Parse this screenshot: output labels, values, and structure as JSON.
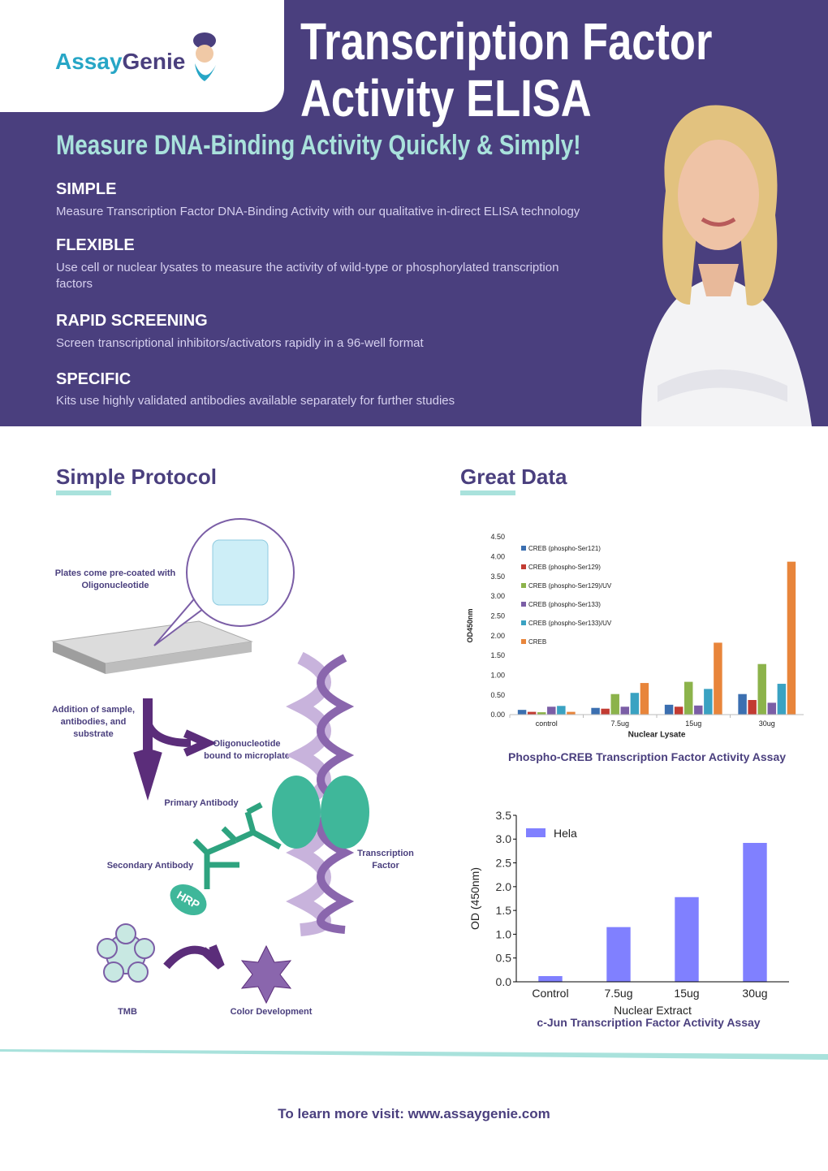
{
  "logo": {
    "part_a": "Assay",
    "part_b": "Genie"
  },
  "header": {
    "title_line1": "Transcription Factor",
    "title_line2": "Activity ELISA",
    "subtitle": "Measure DNA-Binding Activity Quickly & Simply!"
  },
  "features": [
    {
      "heading": "SIMPLE",
      "text": "Measure Transcription Factor DNA-Binding Activity with our qualitative in-direct ELISA technology"
    },
    {
      "heading": "FLEXIBLE",
      "text": "Use cell or nuclear lysates to measure the activity of wild-type or phosphorylated transcription factors"
    },
    {
      "heading": "RAPID SCREENING",
      "text": "Screen transcriptional inhibitors/activators rapidly in a 96-well format"
    },
    {
      "heading": "SPECIFIC",
      "text": "Kits use highly validated antibodies available separately for further studies"
    }
  ],
  "protocol": {
    "heading": "Simple Protocol",
    "labels": {
      "plates": [
        "Plates come pre-coated with",
        "Oligonucleotide"
      ],
      "addition": [
        "Addition of sample,",
        "antibodies, and",
        "substrate"
      ],
      "oligo": [
        "Oligonucleotide",
        "bound to microplate"
      ],
      "primary": "Primary Antibody",
      "secondary": "Secondary Antibody",
      "tf": [
        "Transcription",
        "Factor"
      ],
      "hrp": "HRP",
      "tmb": "TMB",
      "color": "Color Development"
    }
  },
  "data_heading": "Great Data",
  "chart_data": [
    {
      "type": "bar",
      "title": "Phospho-CREB Transcription Factor Activity Assay",
      "x_label": "Nuclear Lysate",
      "y_label": "OD450nm",
      "categories": [
        "control",
        "7.5ug",
        "15ug",
        "30ug"
      ],
      "series": [
        {
          "name": "CREB (phospho-Ser121)",
          "color": "#3b6fb0",
          "values": [
            0.12,
            0.17,
            0.25,
            0.52
          ]
        },
        {
          "name": "CREB (phospho-Ser129)",
          "color": "#c23b32",
          "values": [
            0.07,
            0.15,
            0.2,
            0.37
          ]
        },
        {
          "name": "CREB (phospho-Ser129)/UV",
          "color": "#8cb34b",
          "values": [
            0.06,
            0.52,
            0.83,
            1.28
          ]
        },
        {
          "name": "CREB (phospho-Ser133)",
          "color": "#7b5ea6",
          "values": [
            0.2,
            0.2,
            0.23,
            0.3
          ]
        },
        {
          "name": "CREB (phospho-Ser133)/UV",
          "color": "#3aa2c2",
          "values": [
            0.22,
            0.55,
            0.65,
            0.78
          ]
        },
        {
          "name": "CREB",
          "color": "#e8853b",
          "values": [
            0.07,
            0.8,
            1.82,
            3.87
          ]
        }
      ],
      "ylim": [
        0,
        4.5
      ],
      "yticks": [
        {
          "value": 0,
          "label": "0.00"
        },
        {
          "value": 0.5,
          "label": "0.50"
        },
        {
          "value": 1,
          "label": "1.00"
        },
        {
          "value": 1.5,
          "label": "1.50"
        },
        {
          "value": 2,
          "label": "2.00"
        },
        {
          "value": 2.5,
          "label": "2.50"
        },
        {
          "value": 3,
          "label": "3.00"
        },
        {
          "value": 3.5,
          "label": "3.50"
        },
        {
          "value": 4,
          "label": "4.00"
        },
        {
          "value": 4.5,
          "label": "4.50"
        }
      ],
      "grid": false,
      "legend": "upper left"
    },
    {
      "type": "bar",
      "title": "c-Jun Transcription Factor Activity Assay",
      "x_label": "Nuclear Extract",
      "y_label": "OD (450nm)",
      "categories": [
        "Control",
        "7.5ug",
        "15ug",
        "30ug"
      ],
      "series": [
        {
          "name": "Hela",
          "color": "#8080ff",
          "values": [
            0.12,
            1.15,
            1.78,
            2.92
          ]
        }
      ],
      "ylim": [
        0,
        3.5
      ],
      "yticks": [
        {
          "value": 0,
          "label": "0.0"
        },
        0.5,
        {
          "value": 1,
          "label": "1.0"
        },
        1.5,
        {
          "value": 2,
          "label": "2.0"
        },
        2.5,
        {
          "value": 3,
          "label": "3.0"
        },
        3.5
      ],
      "grid": false,
      "legend": "upper left"
    }
  ],
  "footer": {
    "text": "To learn more visit: www.assaygenie.com"
  }
}
